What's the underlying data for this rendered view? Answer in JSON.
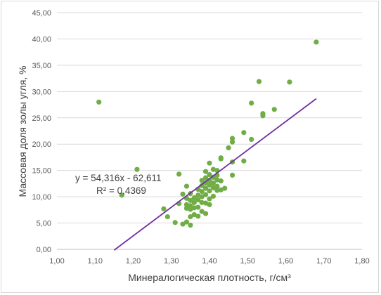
{
  "chart_data": {
    "type": "scatter",
    "xlabel": "Минералогическая плотность, г/см³",
    "ylabel": "Массовая доля золы угля, %",
    "xlim": [
      1.0,
      1.8
    ],
    "ylim": [
      0,
      45
    ],
    "x_ticks": [
      "1,00",
      "1,10",
      "1,20",
      "1,30",
      "1,40",
      "1,50",
      "1,60",
      "1,70",
      "1,80"
    ],
    "y_ticks": [
      "0,00",
      "5,00",
      "10,00",
      "15,00",
      "20,00",
      "25,00",
      "30,00",
      "35,00",
      "40,00",
      "45,00"
    ],
    "grid": "horizontal",
    "marker_color": "#70ad47",
    "trendline_color": "#7030a0",
    "trendline": {
      "slope": 54.316,
      "intercept": -62.611,
      "x_range": [
        1.15,
        1.68
      ]
    },
    "annotations": {
      "equation": "y = 54,316x - 62,611",
      "r2": "R² = 0,4369"
    },
    "points": [
      [
        1.11,
        28.0
      ],
      [
        1.17,
        10.3
      ],
      [
        1.21,
        15.2
      ],
      [
        1.28,
        7.7
      ],
      [
        1.29,
        6.2
      ],
      [
        1.31,
        5.1
      ],
      [
        1.32,
        14.3
      ],
      [
        1.32,
        8.7
      ],
      [
        1.33,
        10.5
      ],
      [
        1.33,
        4.8
      ],
      [
        1.34,
        12.0
      ],
      [
        1.34,
        9.7
      ],
      [
        1.34,
        8.5
      ],
      [
        1.34,
        7.8
      ],
      [
        1.34,
        5.2
      ],
      [
        1.35,
        10.6
      ],
      [
        1.35,
        9.3
      ],
      [
        1.35,
        8.3
      ],
      [
        1.35,
        7.6
      ],
      [
        1.35,
        6.2
      ],
      [
        1.35,
        4.6
      ],
      [
        1.36,
        9.8
      ],
      [
        1.36,
        8.9
      ],
      [
        1.36,
        7.9
      ],
      [
        1.36,
        6.6
      ],
      [
        1.37,
        11.4
      ],
      [
        1.37,
        10.3
      ],
      [
        1.37,
        9.4
      ],
      [
        1.37,
        8.0
      ],
      [
        1.37,
        6.3
      ],
      [
        1.38,
        13.1
      ],
      [
        1.38,
        12.1
      ],
      [
        1.38,
        11.0
      ],
      [
        1.38,
        10.0
      ],
      [
        1.38,
        8.9
      ],
      [
        1.38,
        7.2
      ],
      [
        1.39,
        14.8
      ],
      [
        1.39,
        13.6
      ],
      [
        1.39,
        12.6
      ],
      [
        1.39,
        11.6
      ],
      [
        1.39,
        10.4
      ],
      [
        1.39,
        8.8
      ],
      [
        1.39,
        6.8
      ],
      [
        1.4,
        16.4
      ],
      [
        1.4,
        14.2
      ],
      [
        1.4,
        13.1
      ],
      [
        1.4,
        12.2
      ],
      [
        1.4,
        11.1
      ],
      [
        1.4,
        9.6
      ],
      [
        1.4,
        8.5
      ],
      [
        1.41,
        15.2
      ],
      [
        1.41,
        13.7
      ],
      [
        1.41,
        12.6
      ],
      [
        1.41,
        11.7
      ],
      [
        1.41,
        10.1
      ],
      [
        1.42,
        15.0
      ],
      [
        1.42,
        14.1
      ],
      [
        1.42,
        13.2
      ],
      [
        1.42,
        12.0
      ],
      [
        1.42,
        11.2
      ],
      [
        1.43,
        17.2
      ],
      [
        1.43,
        17.4
      ],
      [
        1.43,
        13.0
      ],
      [
        1.43,
        11.3
      ],
      [
        1.44,
        11.6
      ],
      [
        1.45,
        19.3
      ],
      [
        1.46,
        21.1
      ],
      [
        1.46,
        20.4
      ],
      [
        1.46,
        16.6
      ],
      [
        1.46,
        14.1
      ],
      [
        1.49,
        22.2
      ],
      [
        1.49,
        16.8
      ],
      [
        1.51,
        27.8
      ],
      [
        1.51,
        20.9
      ],
      [
        1.53,
        31.9
      ],
      [
        1.54,
        25.8
      ],
      [
        1.54,
        25.4
      ],
      [
        1.57,
        26.6
      ],
      [
        1.61,
        31.8
      ],
      [
        1.68,
        39.4
      ]
    ]
  }
}
